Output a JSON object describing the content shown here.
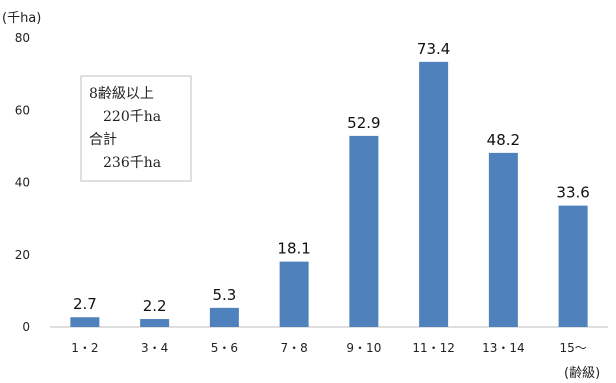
{
  "chart_data": {
    "type": "bar",
    "categories": [
      "1・2",
      "3・4",
      "5・6",
      "7・8",
      "9・10",
      "11・12",
      "13・14",
      "15～"
    ],
    "values": [
      2.7,
      2.2,
      5.3,
      18.1,
      52.9,
      73.4,
      48.2,
      33.6
    ],
    "value_labels": [
      "2.7",
      "2.2",
      "5.3",
      "18.1",
      "52.9",
      "73.4",
      "48.2",
      "33.6"
    ],
    "ylabel": "(千ha)",
    "xlabel": "(齢級)",
    "ylim": [
      0,
      80
    ],
    "yticks": [
      0,
      20,
      40,
      60,
      80
    ],
    "grid": false,
    "bar_color": "#4f81bd",
    "annotation": [
      "8齢級以上",
      "220千ha",
      "合計",
      "236千ha"
    ]
  }
}
